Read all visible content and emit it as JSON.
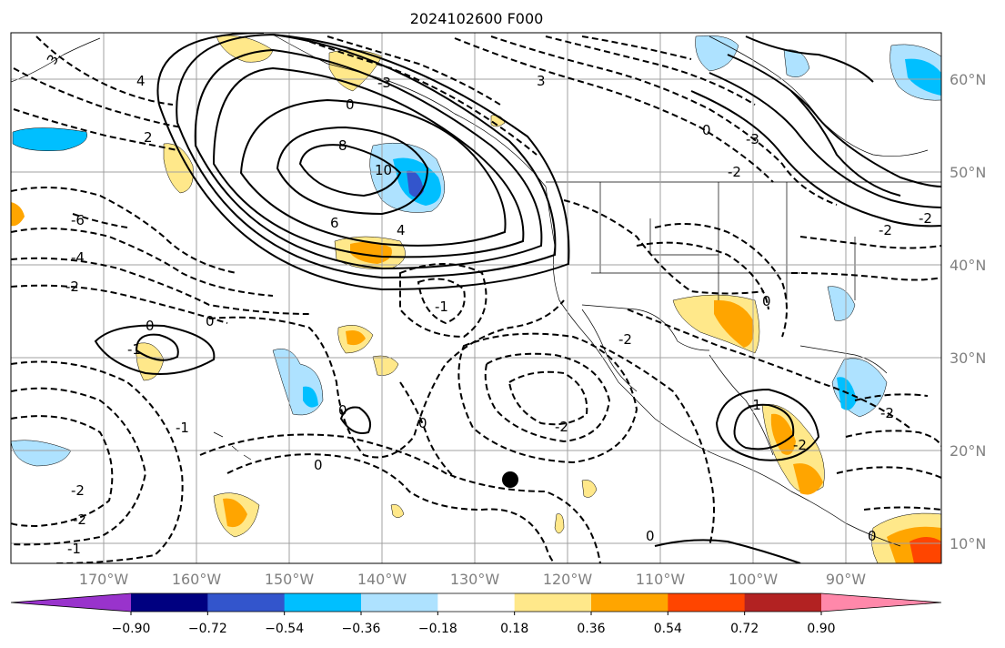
{
  "title": "2024102600 F000",
  "lon_labels": [
    "170°W",
    "160°W",
    "150°W",
    "140°W",
    "130°W",
    "120°W",
    "110°W",
    "100°W",
    "90°W"
  ],
  "lat_labels": [
    "60°N",
    "50°N",
    "40°N",
    "30°N",
    "20°N",
    "10°N"
  ],
  "colorbar": {
    "ticks": [
      "−0.90",
      "−0.72",
      "−0.54",
      "−0.36",
      "−0.18",
      "0.18",
      "0.36",
      "0.54",
      "0.72",
      "0.90"
    ],
    "colors": [
      "#9933cc",
      "#000080",
      "#3355cc",
      "#00bfff",
      "#aee2ff",
      "#ffffff",
      "#ffe88a",
      "#ffa500",
      "#ff4500",
      "#b22222",
      "#ff88aa"
    ]
  },
  "contour_labels": [
    "3",
    "4",
    "2",
    "0",
    "8",
    "10",
    "6",
    "4",
    "0",
    "-1",
    "-2",
    "0",
    "-4",
    "-6",
    "-1",
    "0",
    "0",
    "-2",
    "-2",
    "-1",
    "0",
    "-1",
    "-2",
    "0",
    "-2",
    "-3",
    "3",
    "0",
    "-3",
    "-2",
    "-2",
    "-2",
    "0",
    "-2",
    "-2",
    "-1",
    "0"
  ],
  "marker": "storm-center-dot"
}
